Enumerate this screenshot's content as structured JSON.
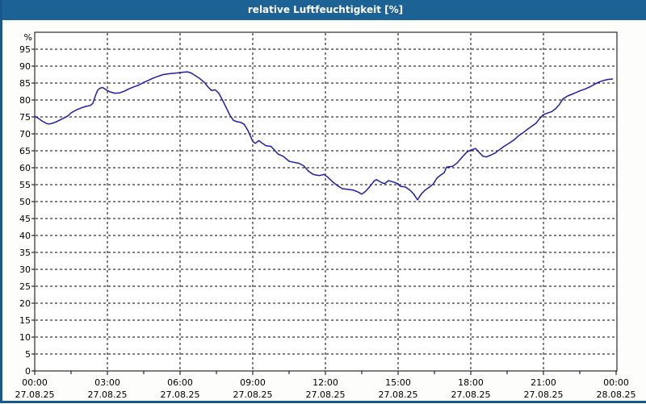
{
  "window": {
    "title": "relative Luftfeuchtigkeit [%]"
  },
  "colors": {
    "titlebar": "#1d6294",
    "frame": "#19588a",
    "background": "#fdfdfb",
    "plot_background": "#ffffff",
    "plot_border": "#000000",
    "grid": "#000000",
    "line": "#1e1ea8"
  },
  "chart_data": {
    "type": "line",
    "title": "relative Luftfeuchtigkeit [%]",
    "ylabel": "%",
    "xlabel": "",
    "grid": "dashed",
    "legend": "none",
    "ylim": [
      0,
      100
    ],
    "y_tick_step": 5,
    "y_ticks": [
      0,
      5,
      10,
      15,
      20,
      25,
      30,
      35,
      40,
      45,
      50,
      55,
      60,
      65,
      70,
      75,
      80,
      85,
      90,
      95
    ],
    "xlim_hours": [
      0,
      24.05
    ],
    "minor_x_tick_interval_hours": 1.5,
    "x_ticks": [
      {
        "hour": 0,
        "time": "00:00",
        "date": "27.08.25"
      },
      {
        "hour": 3,
        "time": "03:00",
        "date": "27.08.25"
      },
      {
        "hour": 6,
        "time": "06:00",
        "date": "27.08.25"
      },
      {
        "hour": 9,
        "time": "09:00",
        "date": "27.08.25"
      },
      {
        "hour": 12,
        "time": "12:00",
        "date": "27.08.25"
      },
      {
        "hour": 15,
        "time": "15:00",
        "date": "27.08.25"
      },
      {
        "hour": 18,
        "time": "18:00",
        "date": "27.08.25"
      },
      {
        "hour": 21,
        "time": "21:00",
        "date": "27.08.25"
      },
      {
        "hour": 24,
        "time": "00:00",
        "date": "28.08.25"
      }
    ],
    "series": [
      {
        "name": "relative Luftfeuchtigkeit [%]",
        "points": [
          [
            0.0,
            75.2
          ],
          [
            0.15,
            74.6
          ],
          [
            0.3,
            73.8
          ],
          [
            0.5,
            73.0
          ],
          [
            0.6,
            72.9
          ],
          [
            0.75,
            73.2
          ],
          [
            0.9,
            73.6
          ],
          [
            1.1,
            74.3
          ],
          [
            1.35,
            75.2
          ],
          [
            1.5,
            76.2
          ],
          [
            1.7,
            77.0
          ],
          [
            1.9,
            77.6
          ],
          [
            2.1,
            78.1
          ],
          [
            2.3,
            78.4
          ],
          [
            2.4,
            79.0
          ],
          [
            2.5,
            81.2
          ],
          [
            2.6,
            82.9
          ],
          [
            2.7,
            83.5
          ],
          [
            2.8,
            83.7
          ],
          [
            2.95,
            83.0
          ],
          [
            3.1,
            82.4
          ],
          [
            3.3,
            82.0
          ],
          [
            3.5,
            82.1
          ],
          [
            3.7,
            82.6
          ],
          [
            3.9,
            83.3
          ],
          [
            4.1,
            83.9
          ],
          [
            4.3,
            84.4
          ],
          [
            4.5,
            85.2
          ],
          [
            4.7,
            85.8
          ],
          [
            4.9,
            86.5
          ],
          [
            5.1,
            87.0
          ],
          [
            5.3,
            87.5
          ],
          [
            5.6,
            87.8
          ],
          [
            5.9,
            88.0
          ],
          [
            6.1,
            88.2
          ],
          [
            6.3,
            88.3
          ],
          [
            6.45,
            88.0
          ],
          [
            6.6,
            87.3
          ],
          [
            6.8,
            86.4
          ],
          [
            7.0,
            85.2
          ],
          [
            7.15,
            83.9
          ],
          [
            7.3,
            82.8
          ],
          [
            7.45,
            83.0
          ],
          [
            7.6,
            82.0
          ],
          [
            7.75,
            80.0
          ],
          [
            7.9,
            77.8
          ],
          [
            8.05,
            75.6
          ],
          [
            8.2,
            74.0
          ],
          [
            8.35,
            73.6
          ],
          [
            8.5,
            73.4
          ],
          [
            8.65,
            72.8
          ],
          [
            8.8,
            71.0
          ],
          [
            9.0,
            67.8
          ],
          [
            9.1,
            67.2
          ],
          [
            9.25,
            68.0
          ],
          [
            9.4,
            67.2
          ],
          [
            9.55,
            66.5
          ],
          [
            9.75,
            66.3
          ],
          [
            9.9,
            65.2
          ],
          [
            10.05,
            64.0
          ],
          [
            10.25,
            63.4
          ],
          [
            10.5,
            61.9
          ],
          [
            10.7,
            61.6
          ],
          [
            10.9,
            61.3
          ],
          [
            11.1,
            60.6
          ],
          [
            11.3,
            59.0
          ],
          [
            11.5,
            58.0
          ],
          [
            11.75,
            57.7
          ],
          [
            11.95,
            58.0
          ],
          [
            12.1,
            57.2
          ],
          [
            12.3,
            55.8
          ],
          [
            12.5,
            54.7
          ],
          [
            12.7,
            53.8
          ],
          [
            12.95,
            53.6
          ],
          [
            13.15,
            53.4
          ],
          [
            13.35,
            52.8
          ],
          [
            13.5,
            52.2
          ],
          [
            13.65,
            53.0
          ],
          [
            13.85,
            54.6
          ],
          [
            14.0,
            56.0
          ],
          [
            14.1,
            56.5
          ],
          [
            14.2,
            56.1
          ],
          [
            14.35,
            55.5
          ],
          [
            14.45,
            55.3
          ],
          [
            14.6,
            56.2
          ],
          [
            14.75,
            55.9
          ],
          [
            14.95,
            55.4
          ],
          [
            15.1,
            54.5
          ],
          [
            15.3,
            54.3
          ],
          [
            15.5,
            53.3
          ],
          [
            15.65,
            52.2
          ],
          [
            15.8,
            50.5
          ],
          [
            15.95,
            52.2
          ],
          [
            16.1,
            53.3
          ],
          [
            16.3,
            54.3
          ],
          [
            16.45,
            55.2
          ],
          [
            16.6,
            56.9
          ],
          [
            16.75,
            57.8
          ],
          [
            16.9,
            58.5
          ],
          [
            17.0,
            60.2
          ],
          [
            17.25,
            60.4
          ],
          [
            17.45,
            61.5
          ],
          [
            17.65,
            63.2
          ],
          [
            17.85,
            64.7
          ],
          [
            18.05,
            65.3
          ],
          [
            18.2,
            65.7
          ],
          [
            18.35,
            64.5
          ],
          [
            18.5,
            63.4
          ],
          [
            18.65,
            63.2
          ],
          [
            18.85,
            63.8
          ],
          [
            19.0,
            64.3
          ],
          [
            19.2,
            65.4
          ],
          [
            19.35,
            66.2
          ],
          [
            19.6,
            67.3
          ],
          [
            19.8,
            68.3
          ],
          [
            20.0,
            69.6
          ],
          [
            20.15,
            70.3
          ],
          [
            20.35,
            71.4
          ],
          [
            20.55,
            72.4
          ],
          [
            20.7,
            73.2
          ],
          [
            20.85,
            74.6
          ],
          [
            21.0,
            75.7
          ],
          [
            21.15,
            76.1
          ],
          [
            21.35,
            76.6
          ],
          [
            21.5,
            77.4
          ],
          [
            21.65,
            78.6
          ],
          [
            21.8,
            80.3
          ],
          [
            22.0,
            81.2
          ],
          [
            22.25,
            81.9
          ],
          [
            22.5,
            82.7
          ],
          [
            22.75,
            83.3
          ],
          [
            23.0,
            84.2
          ],
          [
            23.25,
            85.2
          ],
          [
            23.5,
            85.8
          ],
          [
            23.7,
            86.1
          ],
          [
            23.85,
            86.2
          ]
        ]
      }
    ]
  }
}
